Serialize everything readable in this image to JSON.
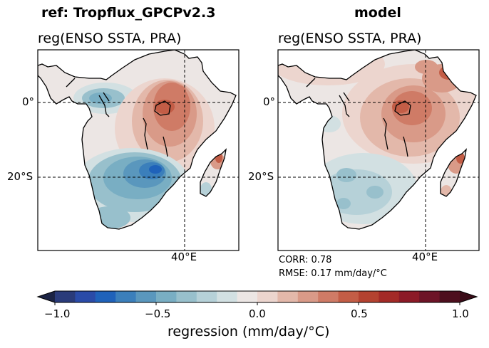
{
  "chart_data": [
    {
      "type": "heatmap",
      "panel_id": "ref",
      "suptitle": "ref: Tropflux_GPCPv2.3",
      "title": "reg(ENSO SSTA, PRA)",
      "lat_ticks": [
        "0°",
        "20°S"
      ],
      "lon_ticks": [
        "40°E"
      ],
      "gridlines": {
        "lat": [
          0,
          -20
        ],
        "lon": [
          40
        ],
        "style": "dashed"
      },
      "extent": {
        "lon": [
          10,
          55
        ],
        "lat": [
          -40,
          14
        ]
      },
      "field": [
        {
          "region": "Equatorial Atlantic / Gulf of Guinea coast",
          "value": -0.3
        },
        {
          "region": "Congo basin",
          "value": 0.0
        },
        {
          "region": "Equatorial East Africa (Lake Victoria, Kenya)",
          "value": 0.5
        },
        {
          "region": "East African highlands ridge",
          "value": 0.4
        },
        {
          "region": "Southern Africa interior",
          "value": -0.4
        },
        {
          "region": "Mozambique / Zimbabwe",
          "value": -0.7
        },
        {
          "region": "South-West Africa",
          "value": -0.3
        },
        {
          "region": "East Madagascar",
          "value": 0.4
        },
        {
          "region": "South Madagascar",
          "value": -0.2
        }
      ]
    },
    {
      "type": "heatmap",
      "panel_id": "model",
      "suptitle": "model",
      "title": "reg(ENSO SSTA, PRA)",
      "lat_ticks": [
        "0°",
        "20°S"
      ],
      "lon_ticks": [
        "40°E"
      ],
      "gridlines": {
        "lat": [
          0,
          -20
        ],
        "lon": [
          40
        ],
        "style": "dashed"
      },
      "extent": {
        "lon": [
          10,
          55
        ],
        "lat": [
          -40,
          14
        ]
      },
      "stats": {
        "corr": "CORR: 0.78",
        "rmse": "RMSE: 0.17 mm/day/$^\\circ$C"
      },
      "field": [
        {
          "region": "North Africa / Sahel",
          "value": 0.1
        },
        {
          "region": "Congo basin",
          "value": 0.15
        },
        {
          "region": "Equatorial East Africa (Lake Victoria, Kenya)",
          "value": 0.55
        },
        {
          "region": "Horn of Africa coast",
          "value": 0.6
        },
        {
          "region": "Eastern Africa band",
          "value": 0.35
        },
        {
          "region": "Southern Africa interior",
          "value": -0.15
        },
        {
          "region": "South-West Africa",
          "value": -0.25
        },
        {
          "region": "East Madagascar",
          "value": 0.5
        }
      ]
    }
  ],
  "colorbar": {
    "label": "regression (mm/day/$^\\circ$C)",
    "range": [
      -1.0,
      1.0
    ],
    "extend": "both",
    "tick_values": [
      -1.0,
      -0.5,
      0.0,
      0.5,
      1.0
    ],
    "tick_labels": [
      "−1.0",
      "−0.5",
      "0.0",
      "0.5",
      "1.0"
    ],
    "levels": 20,
    "colors": [
      "#1b2344",
      "#2a3b7a",
      "#2a4ba8",
      "#1f62ba",
      "#3b7fbb",
      "#5a97bd",
      "#79aec3",
      "#98c0cc",
      "#b6d1d8",
      "#d2e0e2",
      "#ece6e4",
      "#ecd5ce",
      "#e3b8aa",
      "#d99a88",
      "#cf7b66",
      "#c35d46",
      "#b44230",
      "#a32a27",
      "#8c1a27",
      "#6d1427",
      "#4d0f1e",
      "#3a0c18"
    ]
  },
  "labels": {
    "suptitle_ref": "ref: Tropflux_GPCPv2.3",
    "suptitle_model": "model",
    "title_ref": "reg(ENSO SSTA, PRA)",
    "title_model": "reg(ENSO SSTA, PRA)",
    "lat0": "0°",
    "lat20": "20°S",
    "lon40": "40°E",
    "corr": "CORR: 0.78",
    "rmse": "RMSE: 0.17 mm/day/°C",
    "cb_label": "regression (mm/day/°C)"
  }
}
